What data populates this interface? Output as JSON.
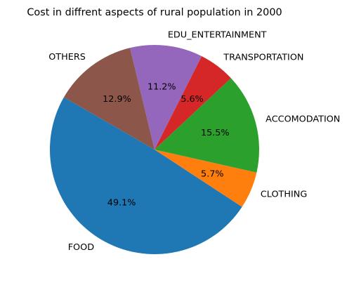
{
  "chart_data": {
    "type": "pie",
    "title": "Cost in diffrent aspects of rural population in 2000",
    "start_angle": 150,
    "direction": "counterclockwise",
    "slices": [
      {
        "label": "FOOD",
        "value": 49.1,
        "pct_label": "49.1%",
        "color": "#1f77b4"
      },
      {
        "label": "CLOTHING",
        "value": 5.7,
        "pct_label": "5.7%",
        "color": "#ff7f0e"
      },
      {
        "label": "ACCOMODATION",
        "value": 15.5,
        "pct_label": "15.5%",
        "color": "#2ca02c"
      },
      {
        "label": "TRANSPORTATION",
        "value": 5.6,
        "pct_label": "5.6%",
        "color": "#d62728"
      },
      {
        "label": "EDU_ENTERTAINMENT",
        "value": 11.2,
        "pct_label": "11.2%",
        "color": "#9467bd"
      },
      {
        "label": "OTHERS",
        "value": 12.9,
        "pct_label": "12.9%",
        "color": "#8c564b"
      }
    ]
  }
}
